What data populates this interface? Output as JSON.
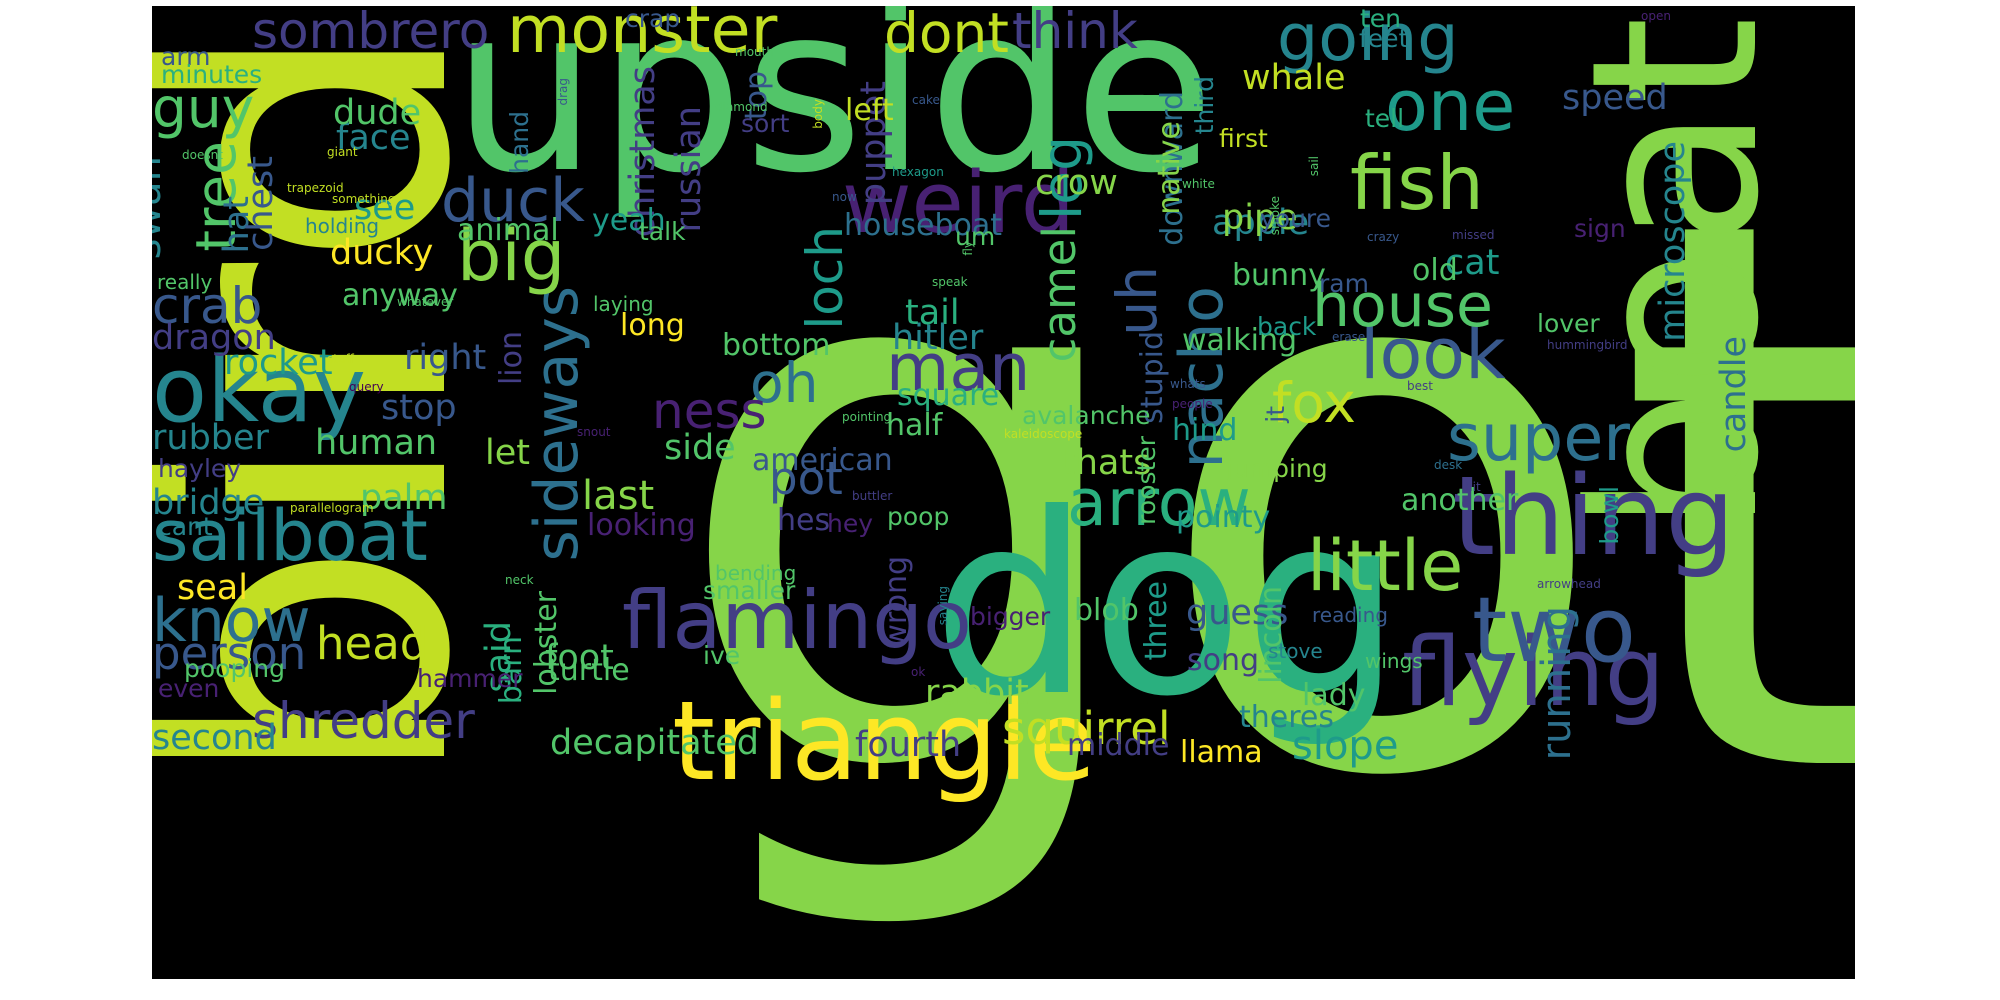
{
  "palette": {
    "background": "#000000",
    "yellow": "#fde725",
    "lime": "#c2df23",
    "green": "#86d549",
    "green2": "#52c569",
    "teal_green": "#2ab07f",
    "teal": "#1e9b8a",
    "teal2": "#25858e",
    "blue_teal": "#2d708e",
    "blue": "#38588c",
    "indigo": "#433e85",
    "purple": "#482173",
    "deep_purple": "#440154"
  },
  "words": [
    "got",
    "bird",
    "upside",
    "dog",
    "boat",
    "triangle",
    "thing",
    "flying",
    "two",
    "weird",
    "flamingo",
    "monster",
    "okay",
    "fish",
    "one",
    "sailboat",
    "going",
    "little",
    "sideways",
    "arrow",
    "big",
    "look",
    "house",
    "super",
    "man",
    "dont",
    "nacho",
    "duck",
    "uh",
    "guy",
    "fox",
    "know",
    "shredder",
    "tree",
    "crab",
    "leg",
    "think",
    "oh",
    "sombrero",
    "loch",
    "squirrel",
    "head",
    "ness",
    "camel",
    "swan",
    "running",
    "person",
    "last",
    "pot",
    "microscope",
    "decapitated",
    "whale",
    "speed",
    "slope",
    "foot",
    "face",
    "rabbit",
    "crow",
    "apple",
    "fourth",
    "right",
    "rubber",
    "bridge",
    "palm",
    "thats",
    "second",
    "cat",
    "dude",
    "square",
    "stop",
    "tail",
    "hitler",
    "seal",
    "guess",
    "another",
    "puppet",
    "ducky",
    "animal",
    "dragon",
    "rocket",
    "long",
    "hat",
    "see",
    "chest",
    "half",
    "let",
    "side",
    "pipe",
    "human",
    "pointy",
    "anyway",
    "lady",
    "song",
    "blob",
    "candle",
    "said",
    "christmas",
    "turtle",
    "lobster",
    "bunny",
    "russian",
    "theres",
    "three",
    "old",
    "middle",
    "lincoln",
    "llama",
    "hind",
    "first",
    "houseboat",
    "walking",
    "downward",
    "native",
    "stupid",
    "barn",
    "lion",
    "looking",
    "yeah",
    "hes",
    "american",
    "top",
    "bottom",
    "left",
    "wrong",
    "third",
    "bowl",
    "feet",
    "ten",
    "tell",
    "youre",
    "jt",
    "lover",
    "jumping",
    "avalanche",
    "rooster",
    "ram",
    "back",
    "sign",
    "talk",
    "crap",
    "hand",
    "sort",
    "arm",
    "minutes",
    "cant",
    "hayley",
    "even",
    "hey",
    "poop",
    "um",
    "bigger",
    "ive",
    "smaller",
    "bending",
    "pooping",
    "hammer",
    "really",
    "holding",
    "stove",
    "reading",
    "wings",
    "laying",
    "open",
    "mouth",
    "drag",
    "diamond",
    "cake",
    "body",
    "doesnt",
    "giant",
    "trapezoid",
    "something",
    "hexagon",
    "white",
    "smoke",
    "sail",
    "now",
    "fly",
    "crazy",
    "missed",
    "speak",
    "whatever",
    "stuff",
    "query",
    "erase",
    "hummingbird",
    "whats",
    "best",
    "people",
    "snout",
    "pointing",
    "kaleidoscope",
    "desk",
    "hit",
    "buttler",
    "parallelogram",
    "saying",
    "neck",
    "arrowhead",
    "ok"
  ]
}
